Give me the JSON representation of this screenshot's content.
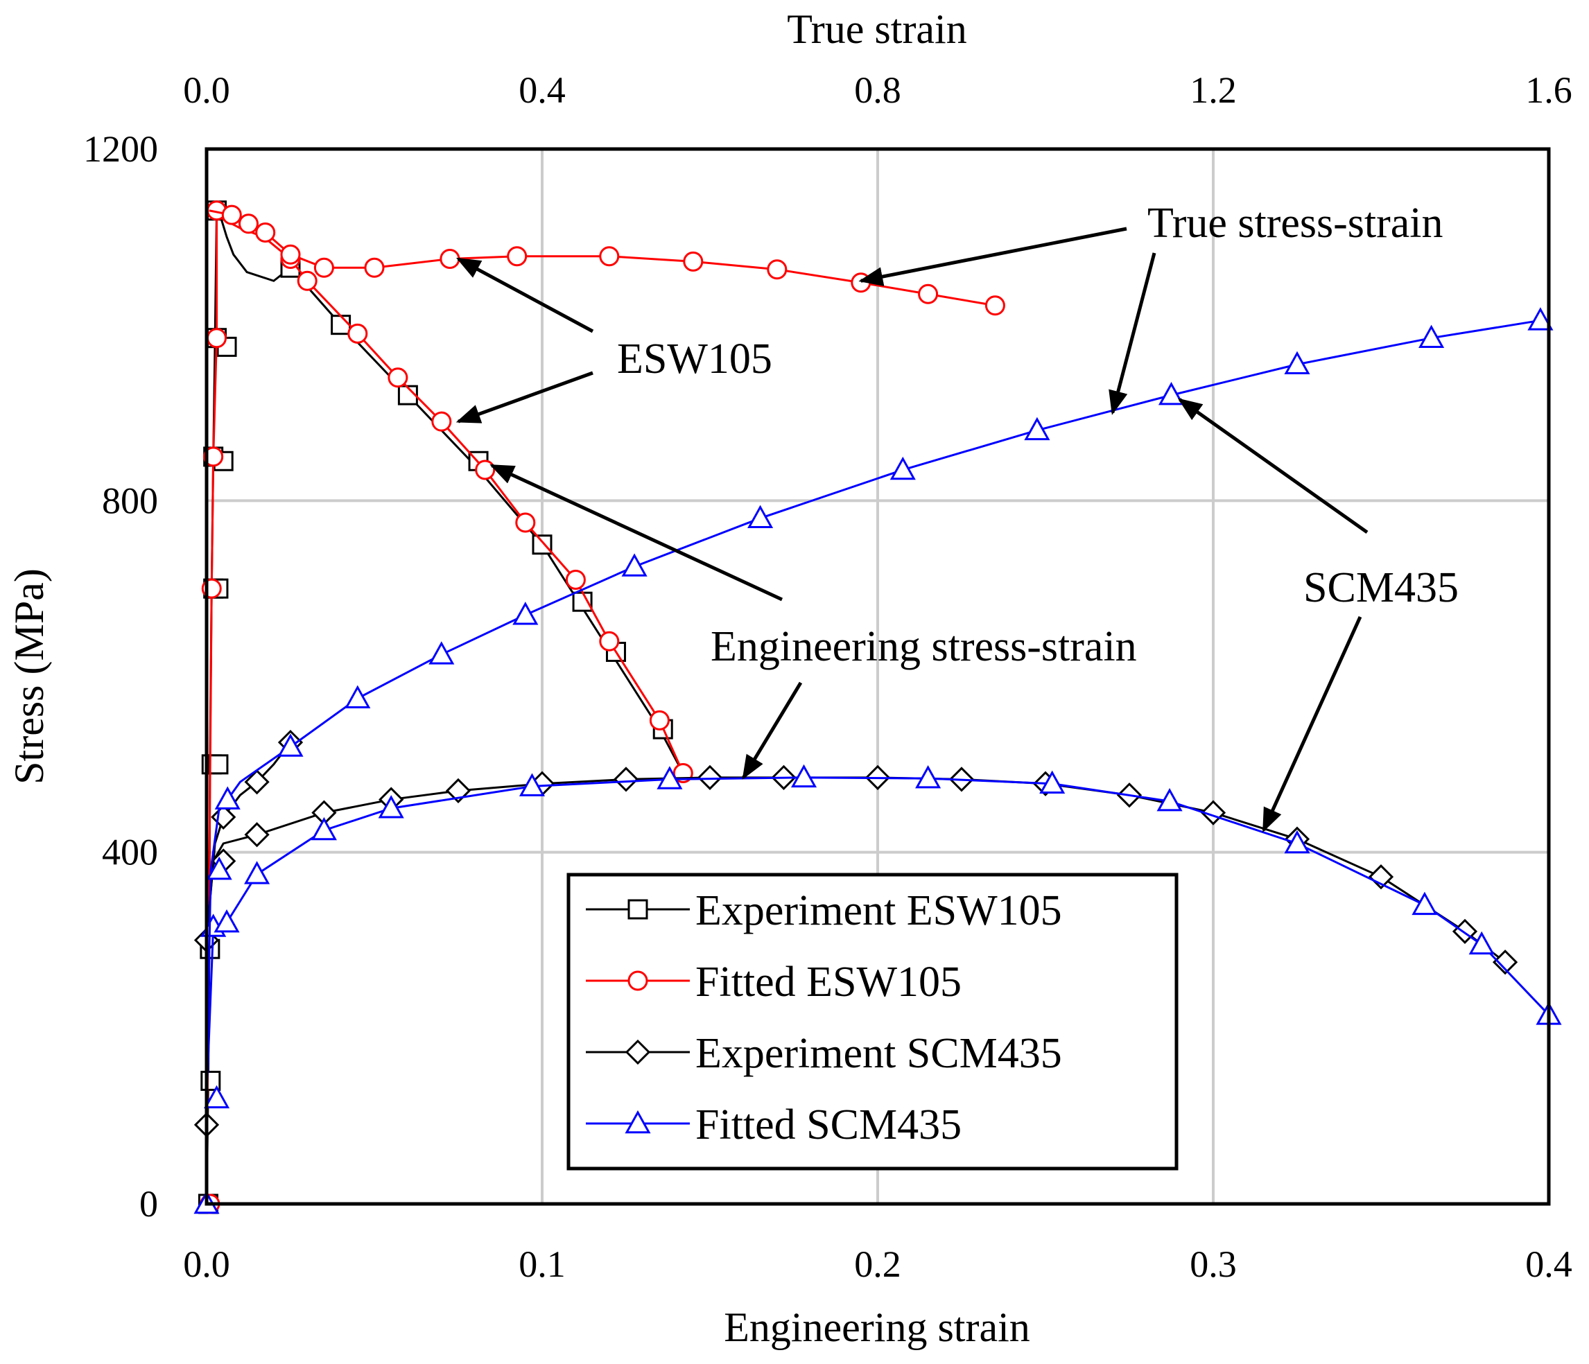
{
  "chart_data": {
    "type": "line",
    "xlabel_bottom": "Engineering  strain",
    "xlabel_top": "True strain",
    "ylabel": "Stress (MPa)",
    "x_bottom_lim": [
      0,
      0.4
    ],
    "x_top_lim": [
      0,
      1.6
    ],
    "ylim": [
      0,
      1200
    ],
    "x_bottom_ticks": [
      "0.0",
      "0.1",
      "0.2",
      "0.3",
      "0.4"
    ],
    "x_top_ticks": [
      "0.0",
      "0.4",
      "0.8",
      "1.2",
      "1.6"
    ],
    "y_ticks": [
      "0",
      "400",
      "800",
      "1200"
    ],
    "grid": true,
    "legend_position": "lower-center",
    "series": [
      {
        "name": "Experiment ESW105",
        "axis": "bottom",
        "color": "#000000",
        "marker": "square",
        "points": [
          [
            0.0,
            0
          ],
          [
            0.0005,
            140
          ],
          [
            0.0008,
            290
          ],
          [
            0.001,
            500
          ],
          [
            0.0015,
            700
          ],
          [
            0.002,
            850
          ],
          [
            0.0025,
            980
          ],
          [
            0.003,
            1130
          ],
          [
            0.004,
            1125
          ],
          [
            0.006,
            1100
          ],
          [
            0.008,
            1080
          ],
          [
            0.012,
            1060
          ],
          [
            0.02,
            1050
          ],
          [
            0.025,
            1065
          ],
          [
            0.04,
            1000
          ],
          [
            0.06,
            920
          ],
          [
            0.08,
            840
          ],
          [
            0.1,
            750
          ],
          [
            0.12,
            630
          ],
          [
            0.135,
            540
          ],
          [
            0.142,
            490
          ]
        ],
        "markers": [
          [
            0.0005,
            0
          ],
          [
            0.0012,
            140
          ],
          [
            0.001,
            290
          ],
          [
            0.0015,
            500
          ],
          [
            0.002,
            700
          ],
          [
            0.002,
            850
          ],
          [
            0.003,
            985
          ],
          [
            0.003,
            1130
          ],
          [
            0.025,
            1065
          ],
          [
            0.04,
            1000
          ],
          [
            0.06,
            920
          ],
          [
            0.081,
            845
          ],
          [
            0.1,
            750
          ],
          [
            0.112,
            685
          ],
          [
            0.122,
            628
          ],
          [
            0.136,
            540
          ],
          [
            0.0035,
            500
          ],
          [
            0.0035,
            700
          ],
          [
            0.005,
            845
          ],
          [
            0.006,
            975
          ]
        ]
      },
      {
        "name": "Fitted ESW105",
        "axis": "bottom",
        "color": "#ff0000",
        "marker": "circle",
        "points": [
          [
            0.0,
            0
          ],
          [
            0.0015,
            700
          ],
          [
            0.002,
            850
          ],
          [
            0.003,
            985
          ],
          [
            0.003,
            1130
          ],
          [
            0.005,
            1120
          ],
          [
            0.01,
            1110
          ],
          [
            0.017,
            1100
          ],
          [
            0.025,
            1075
          ],
          [
            0.03,
            1050
          ],
          [
            0.045,
            990
          ],
          [
            0.057,
            940
          ],
          [
            0.07,
            890
          ],
          [
            0.083,
            835
          ],
          [
            0.095,
            775
          ],
          [
            0.11,
            710
          ],
          [
            0.12,
            640
          ],
          [
            0.135,
            550
          ],
          [
            0.142,
            490
          ]
        ],
        "markers": [
          [
            0.001,
            0
          ],
          [
            0.0015,
            700
          ],
          [
            0.002,
            850
          ],
          [
            0.003,
            985
          ],
          [
            0.003,
            1130
          ],
          [
            0.025,
            1075
          ],
          [
            0.03,
            1050
          ],
          [
            0.045,
            990
          ],
          [
            0.057,
            940
          ],
          [
            0.07,
            890
          ],
          [
            0.083,
            835
          ],
          [
            0.095,
            775
          ],
          [
            0.11,
            710
          ],
          [
            0.12,
            640
          ],
          [
            0.135,
            550
          ],
          [
            0.142,
            490
          ]
        ]
      },
      {
        "name": "Fitted ESW105 (true)",
        "axis": "top",
        "color": "#ff0000",
        "marker": "circle",
        "points": [
          [
            0.003,
            1130
          ],
          [
            0.03,
            1125
          ],
          [
            0.05,
            1115
          ],
          [
            0.07,
            1105
          ],
          [
            0.1,
            1080
          ],
          [
            0.14,
            1065
          ],
          [
            0.2,
            1065
          ],
          [
            0.29,
            1075
          ],
          [
            0.37,
            1078
          ],
          [
            0.48,
            1078
          ],
          [
            0.58,
            1072
          ],
          [
            0.68,
            1063
          ],
          [
            0.78,
            1048
          ],
          [
            0.86,
            1035
          ],
          [
            0.94,
            1022
          ]
        ],
        "markers": [
          [
            0.03,
            1125
          ],
          [
            0.05,
            1115
          ],
          [
            0.07,
            1105
          ],
          [
            0.1,
            1080
          ],
          [
            0.14,
            1065
          ],
          [
            0.2,
            1065
          ],
          [
            0.29,
            1075
          ],
          [
            0.37,
            1078
          ],
          [
            0.48,
            1078
          ],
          [
            0.58,
            1072
          ],
          [
            0.68,
            1063
          ],
          [
            0.78,
            1048
          ],
          [
            0.86,
            1035
          ],
          [
            0.94,
            1022
          ]
        ]
      },
      {
        "name": "Experiment SCM435",
        "axis": "bottom",
        "color": "#000000",
        "marker": "diamond",
        "points": [
          [
            0.0,
            0
          ],
          [
            0.0,
            90
          ],
          [
            0.0,
            300
          ],
          [
            0.002,
            390
          ],
          [
            0.005,
            410
          ],
          [
            0.015,
            420
          ],
          [
            0.035,
            445
          ],
          [
            0.055,
            460
          ],
          [
            0.075,
            470
          ],
          [
            0.1,
            478
          ],
          [
            0.125,
            483
          ],
          [
            0.15,
            485
          ],
          [
            0.172,
            485
          ],
          [
            0.2,
            485
          ],
          [
            0.225,
            483
          ],
          [
            0.25,
            478
          ],
          [
            0.275,
            465
          ],
          [
            0.3,
            445
          ],
          [
            0.325,
            415
          ],
          [
            0.35,
            372
          ],
          [
            0.375,
            310
          ],
          [
            0.387,
            275
          ]
        ],
        "markers": [
          [
            0.0,
            90
          ],
          [
            0.0,
            300
          ],
          [
            0.005,
            390
          ],
          [
            0.015,
            420
          ],
          [
            0.035,
            445
          ],
          [
            0.055,
            460
          ],
          [
            0.075,
            470
          ],
          [
            0.1,
            478
          ],
          [
            0.125,
            483
          ],
          [
            0.15,
            485
          ],
          [
            0.172,
            485
          ],
          [
            0.2,
            485
          ],
          [
            0.225,
            483
          ],
          [
            0.25,
            478
          ],
          [
            0.275,
            465
          ],
          [
            0.3,
            445
          ],
          [
            0.325,
            415
          ],
          [
            0.35,
            372
          ],
          [
            0.375,
            310
          ],
          [
            0.387,
            275
          ]
        ]
      },
      {
        "name": "Experiment SCM435 (true)",
        "axis": "top",
        "color": "#000000",
        "marker": "diamond",
        "points": [
          [
            0.0,
            300
          ],
          [
            0.01,
            410
          ],
          [
            0.02,
            440
          ],
          [
            0.04,
            465
          ],
          [
            0.06,
            480
          ],
          [
            0.08,
            500
          ],
          [
            0.1,
            525
          ]
        ],
        "markers": [
          [
            0.02,
            440
          ],
          [
            0.06,
            480
          ],
          [
            0.1,
            525
          ]
        ]
      },
      {
        "name": "Fitted SCM435",
        "axis": "bottom",
        "color": "#0000ff",
        "marker": "triangle",
        "points": [
          [
            0.0,
            0
          ],
          [
            0.0,
            120
          ],
          [
            0.002,
            315
          ],
          [
            0.006,
            320
          ],
          [
            0.015,
            375
          ],
          [
            0.035,
            425
          ],
          [
            0.055,
            450
          ],
          [
            0.097,
            475
          ],
          [
            0.138,
            483
          ],
          [
            0.178,
            485
          ],
          [
            0.215,
            484
          ],
          [
            0.252,
            478
          ],
          [
            0.287,
            458
          ],
          [
            0.325,
            410
          ],
          [
            0.363,
            340
          ],
          [
            0.38,
            295
          ],
          [
            0.4,
            215
          ]
        ],
        "markers": [
          [
            0.0,
            0
          ],
          [
            0.003,
            120
          ],
          [
            0.002,
            315
          ],
          [
            0.006,
            320
          ],
          [
            0.015,
            375
          ],
          [
            0.035,
            425
          ],
          [
            0.055,
            450
          ],
          [
            0.097,
            475
          ],
          [
            0.138,
            483
          ],
          [
            0.178,
            485
          ],
          [
            0.215,
            484
          ],
          [
            0.252,
            478
          ],
          [
            0.287,
            458
          ],
          [
            0.325,
            410
          ],
          [
            0.363,
            340
          ],
          [
            0.38,
            295
          ],
          [
            0.4,
            215
          ]
        ]
      },
      {
        "name": "Fitted SCM435 (true)",
        "axis": "top",
        "color": "#0000ff",
        "marker": "triangle",
        "points": [
          [
            0.0,
            120
          ],
          [
            0.005,
            380
          ],
          [
            0.015,
            450
          ],
          [
            0.025,
            460
          ],
          [
            0.04,
            480
          ],
          [
            0.1,
            520
          ],
          [
            0.18,
            575
          ],
          [
            0.28,
            625
          ],
          [
            0.38,
            670
          ],
          [
            0.51,
            725
          ],
          [
            0.66,
            780
          ],
          [
            0.83,
            835
          ],
          [
            0.99,
            880
          ],
          [
            1.15,
            920
          ],
          [
            1.3,
            955
          ],
          [
            1.46,
            985
          ],
          [
            1.59,
            1005
          ]
        ],
        "markers": [
          [
            0.015,
            380
          ],
          [
            0.025,
            460
          ],
          [
            0.1,
            520
          ],
          [
            0.18,
            575
          ],
          [
            0.28,
            625
          ],
          [
            0.38,
            670
          ],
          [
            0.51,
            725
          ],
          [
            0.66,
            780
          ],
          [
            0.83,
            835
          ],
          [
            0.99,
            880
          ],
          [
            1.15,
            920
          ],
          [
            1.3,
            955
          ],
          [
            1.46,
            985
          ],
          [
            1.59,
            1005
          ]
        ]
      }
    ],
    "annotations": [
      {
        "text": "True stress-strain",
        "arrows_to": [
          [
            0.78,
            1050,
            "top"
          ],
          [
            1.08,
            900,
            "top"
          ]
        ]
      },
      {
        "text": "ESW105",
        "arrows_to": [
          [
            0.3,
            1075,
            "top"
          ],
          [
            0.075,
            890,
            "bottom"
          ]
        ]
      },
      {
        "text": "Engineering stress-strain",
        "arrows_to": [
          [
            0.085,
            840,
            "bottom"
          ],
          [
            0.16,
            485,
            "bottom"
          ]
        ]
      },
      {
        "text": "SCM435",
        "arrows_to": [
          [
            1.16,
            915,
            "top"
          ],
          [
            0.315,
            425,
            "bottom"
          ]
        ]
      }
    ]
  }
}
